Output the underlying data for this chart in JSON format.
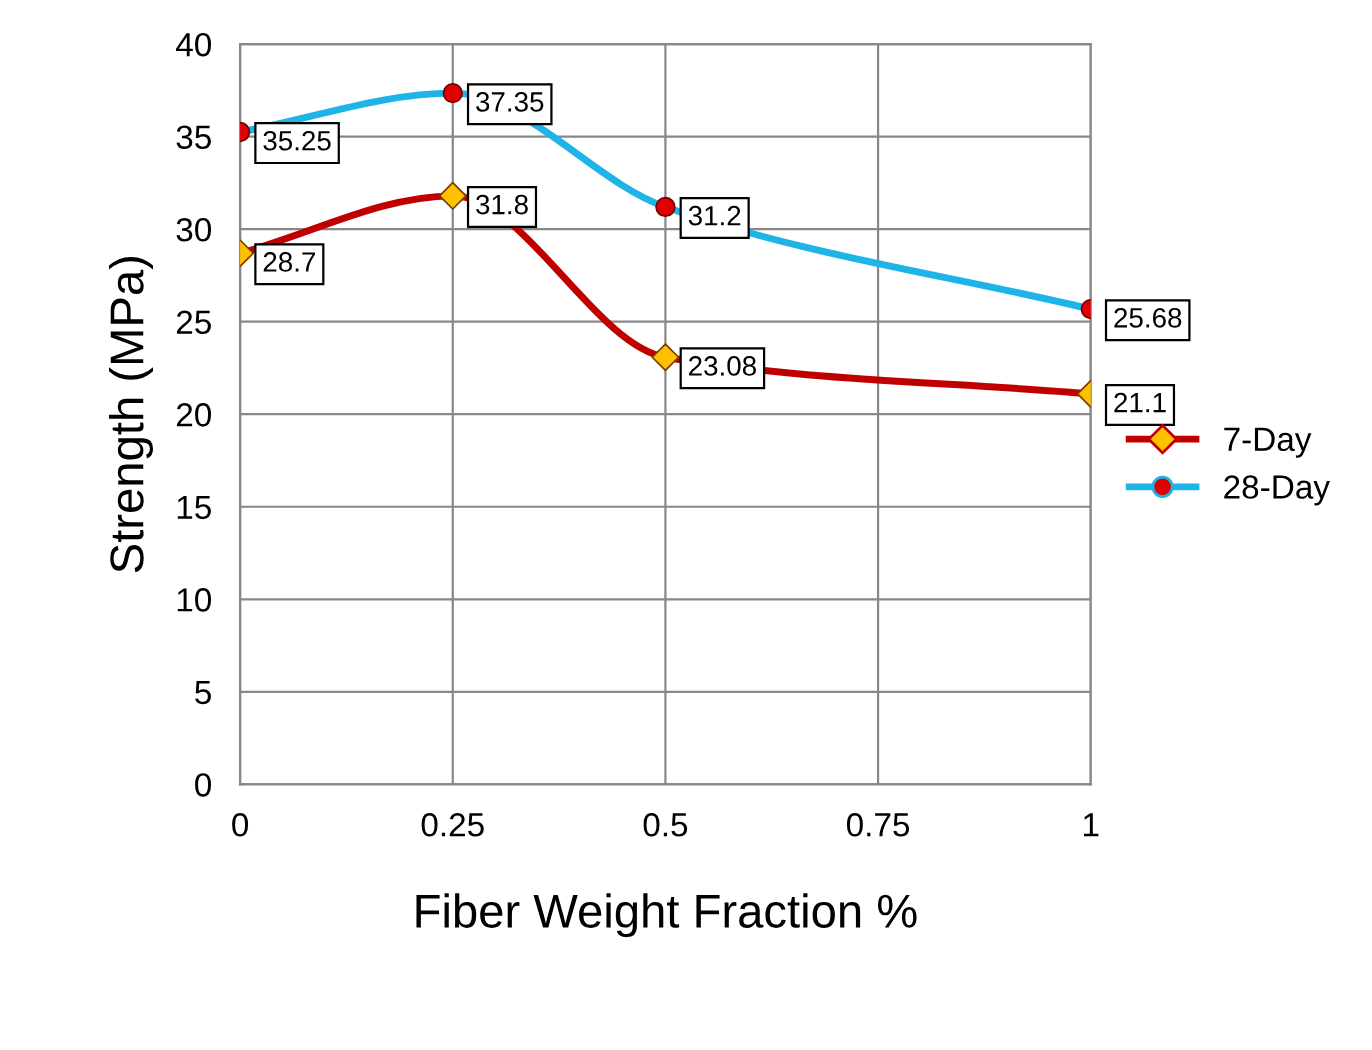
{
  "chart_data": {
    "type": "line",
    "xlabel": "Fiber Weight Fraction %",
    "ylabel": "Strength (MPa)",
    "x": [
      0,
      0.25,
      0.5,
      1
    ],
    "series": [
      {
        "name": "7-Day",
        "color": "#c00000",
        "colors": [
          "#ffc000",
          "#ffc000",
          "#ffc000",
          "#ffc000"
        ],
        "marker": "diamond",
        "values": [
          28.7,
          31.8,
          23.08,
          21.1
        ]
      },
      {
        "name": "28-Day",
        "color": "#1fb4e8",
        "colors": [
          "#e00000",
          "#e00000",
          "#e00000",
          "#e00000"
        ],
        "marker": "circle",
        "values": [
          35.25,
          37.35,
          31.2,
          25.68
        ]
      }
    ],
    "xlim": [
      0,
      1
    ],
    "xticks": [
      0,
      0.25,
      0.5,
      0.75,
      1
    ],
    "ylim": [
      0,
      40
    ],
    "yticks": [
      0,
      5,
      10,
      15,
      20,
      25,
      30,
      35,
      40
    ],
    "grid": true,
    "legend": "right",
    "data_labels": true,
    "line_style": "solid"
  }
}
